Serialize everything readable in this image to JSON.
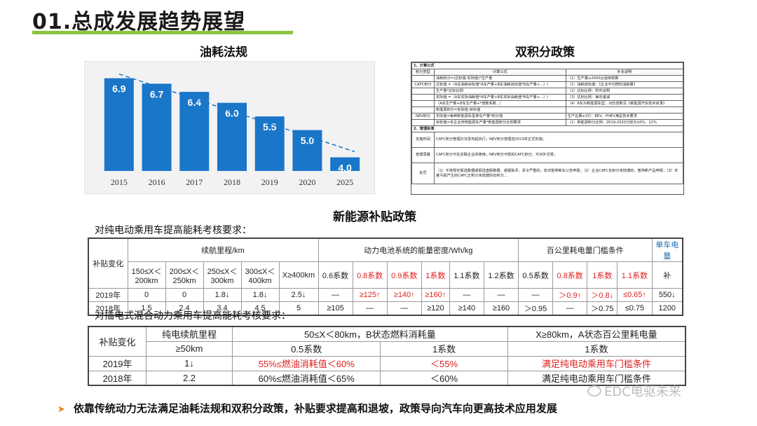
{
  "slide": {
    "title": "01.总成发展趋势展望",
    "conclusion": "依靠传统动力无法满足油耗法规和双积分政策，补贴要求提高和退坡，政策导向汽车向更高技术应用发展",
    "watermark": "EDC电驱未来"
  },
  "sections": {
    "fuel": "油耗法规",
    "credit": "双积分政策",
    "subsidy": "新能源补贴政策",
    "ev_req": "对纯电动乘用车提高能耗考核要求：",
    "phev_req": "对插电式混合动力乘用车提高能耗考核要求："
  },
  "colors": {
    "bar": "#1a76c9",
    "accent": "#8cc63f",
    "red": "#e02020"
  },
  "chart_data": {
    "type": "bar",
    "categories": [
      "2015",
      "2016",
      "2017",
      "2018",
      "2019",
      "2020",
      "2025"
    ],
    "values": [
      6.9,
      6.7,
      6.4,
      6.0,
      5.5,
      5.0,
      4.0
    ],
    "value_labels": [
      "6.9",
      "6.7",
      "6.4",
      "6.0",
      "5.5",
      "5.0",
      "4.0"
    ],
    "title": "油耗法规",
    "xlabel": "",
    "ylabel": "",
    "ylim": [
      3.5,
      7.2
    ],
    "trend_line": "dashed"
  },
  "credit": {
    "s1": "1、计算公式",
    "h": [
      "积分类型",
      "计算公式",
      "补充说明"
    ],
    "rows": [
      {
        "l": "",
        "f": "油耗积分=(达标值-实际值)*生产量",
        "n": "（1）生产量≥2000台适用核算"
      },
      {
        "l": "CAFC积分",
        "f": "达标值 =（A车油耗目标值*A车产量+B车油耗目标值*B车产量+...）/",
        "n": "（1）油耗目标值：《企业平均燃料消耗量》"
      },
      {
        "l": "",
        "f": "生产量*达标比例",
        "n": "（2）达标比例：附件说明"
      },
      {
        "l": "",
        "f": "实际值 =（A车实际油耗值*A车产量+B车实际油耗值*B车产量+...）/",
        "n": "（3）达标比例：每年递减"
      },
      {
        "l": "",
        "f": "（A车生产量+B车生产量+*倍数系数...）",
        "n": "（4）8车为新能源车型，对应倍数见《新能源汽车技术目录》"
      },
      {
        "l": "",
        "f": "新能源积分=实际值-目标值",
        "n": ""
      },
      {
        "l": "NEV积分",
        "f": "实际值=每种新能源车型单车产量*积分值",
        "n": "生产总量≥3万：BEV、PHEV满足技术要求"
      },
      {
        "l": "",
        "f": "目标值=本企业传统能源车产量*新能源积分比例要求",
        "n": "（1）新能源积分比例：2019-2020分别为10%、12%"
      },
      {
        "l": "",
        "f": "",
        "n": ""
      }
    ],
    "s2": "2、管理标准",
    "mgmt": [
      {
        "l": "实施时间",
        "t": "CAFC积分管理办法发布起执行；NEV积分管理自2019年正式实施；"
      },
      {
        "l": "管理思路",
        "t": "CAFC积分可在关联企业间使用；NEV积分可抵扣CAFC积分，可对外交易；"
      },
      {
        "l": "处罚",
        "t": "（1）不按规定报送数据或报送虚假数据，通报批评，责令严重的，依法暂停新车公告申报；（2）企业CAFC负积分未抵偿的，暂停新产品申报；（3）年度亏损产生的CAFC正积分未抵偿的负积分..."
      }
    ]
  },
  "ev_table": {
    "row_label": "补贴变化",
    "groups": [
      "续航里程/km",
      "动力电池系统的能量密度/Wh/kg",
      "百公里耗电量门槛条件",
      "单车电量"
    ],
    "cols": [
      "150≤X＜200km",
      "200≤X＜250km",
      "250≤X＜300km",
      "300≤X＜400km",
      "X≥400km",
      "0.6系数",
      "0.8系数",
      "0.9系数",
      "1系数",
      "1.1系数",
      "1.2系数",
      "0.5系数",
      "0.8系数",
      "1系数",
      "1.1系数",
      "补"
    ],
    "y2019": [
      "2019年",
      "0",
      "0",
      "1.8↓",
      "1.8↓",
      "2.5↓",
      "—",
      "≥125↑",
      "≥140↑",
      "≥160↑",
      "—",
      "—",
      "—",
      "＞0.9↑",
      "＞0.8↓",
      "≤0.65↑",
      "550↓"
    ],
    "y2018": [
      "2018年",
      "1.5",
      "2.4",
      "3.4",
      "4.5",
      "5",
      "≥105",
      "—",
      "—",
      "≥120",
      "≥140",
      "≥160",
      "＞0.95",
      "—",
      "＞0.75",
      "≤0.75",
      "1200"
    ]
  },
  "phev_table": {
    "row_label": "补贴变化",
    "h1": [
      "纯电续航里程",
      "50≤X＜80km，B状态燃料消耗量",
      "X≥80km，A状态百公里耗电量"
    ],
    "h2": [
      "≥50km",
      "0.5系数",
      "1系数",
      "1系数"
    ],
    "y2019": [
      "2019年",
      "1↓",
      "55%≤燃油消耗值＜60%",
      "＜55%",
      "满足纯电动乘用车门槛条件"
    ],
    "y2018": [
      "2018年",
      "2.2",
      "60%≤燃油消耗值＜65%",
      "＜60%",
      "满足纯电动乘用车门槛条件"
    ]
  }
}
